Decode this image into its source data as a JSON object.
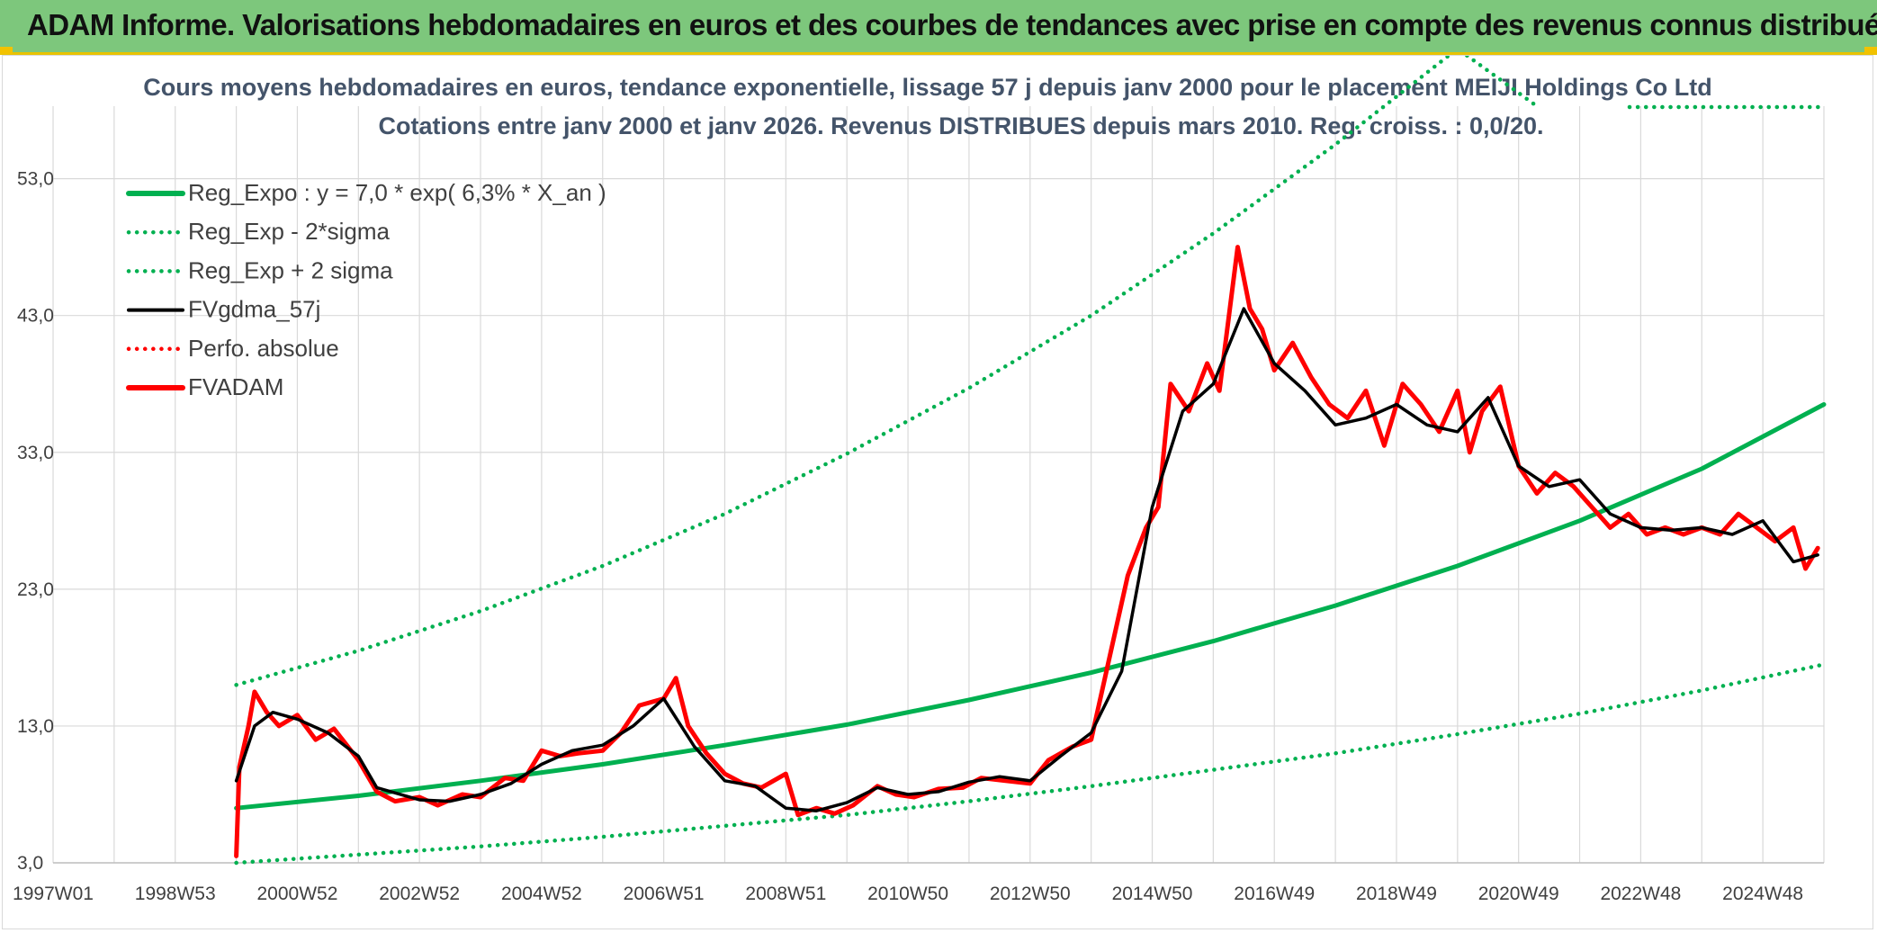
{
  "header": {
    "title": "ADAM Informe. Valorisations hebdomadaires en euros et des courbes de tendances avec prise en compte des revenus connus distribués"
  },
  "colors": {
    "header_bg": "#7dc77c",
    "reg_expo": "#00b050",
    "sigma": "#00b050",
    "gdma": "#000000",
    "perfo": "#ff0000",
    "fvadam": "#ff0000",
    "grid": "#d9d9d9"
  },
  "chart_data": {
    "type": "line",
    "title_line1": "Cours moyens hebdomadaires en euros, tendance exponentielle, lissage 57 j depuis janv 2000 pour le placement MEIJI Holdings Co Ltd",
    "title_line2": "Cotations entre janv 2000 et janv 2026. Revenus DISTRIBUES depuis mars 2010. Reg. croiss. : 0,0/20.",
    "y_ticks": [
      "53,0",
      "43,0",
      "33,0",
      "23,0",
      "13,0",
      "3,0"
    ],
    "ylim": [
      3,
      58.3
    ],
    "x_ticks": [
      "1997W01",
      "1998W53",
      "2000W52",
      "2002W52",
      "2004W52",
      "2006W51",
      "2008W51",
      "2010W50",
      "2012W50",
      "2014W50",
      "2016W49",
      "2018W49",
      "2020W49",
      "2022W48",
      "2024W48"
    ],
    "xlim": [
      1997.0,
      2026.0
    ],
    "legend": [
      {
        "name": "Reg_Expo : y = 7,0 * exp( 6,3% *  X_an )",
        "style": "solid",
        "color": "#00b050"
      },
      {
        "name": "Reg_Exp - 2*sigma",
        "style": "dotted",
        "color": "#00b050"
      },
      {
        "name": "Reg_Exp + 2 sigma",
        "style": "dotted",
        "color": "#00b050"
      },
      {
        "name": "FVgdma_57j",
        "style": "solid",
        "color": "#000000"
      },
      {
        "name": "Perfo. absolue",
        "style": "dotted",
        "color": "#ff0000"
      },
      {
        "name": "FVADAM",
        "style": "solid",
        "color": "#ff0000"
      }
    ],
    "series": [
      {
        "name": "Reg_Expo : y = 7,0 * exp( 6,3% *  X_an )",
        "x": [
          2000.0,
          2002.0,
          2004.0,
          2006.0,
          2008.0,
          2010.0,
          2012.0,
          2014.0,
          2016.0,
          2018.0,
          2020.0,
          2022.0,
          2024.0,
          2026.0
        ],
        "y": [
          7.0,
          7.9,
          9.0,
          10.2,
          11.6,
          13.1,
          14.9,
          16.9,
          19.2,
          21.8,
          24.7,
          28.0,
          31.8,
          36.5
        ]
      },
      {
        "name": "Reg_Exp - 2*sigma",
        "x": [
          2000.0,
          2002.0,
          2004.0,
          2006.0,
          2008.0,
          2010.0,
          2012.0,
          2014.0,
          2016.0,
          2018.0,
          2020.0,
          2022.0,
          2024.0,
          2026.0
        ],
        "y": [
          3.0,
          3.6,
          4.2,
          4.9,
          5.7,
          6.5,
          7.5,
          8.6,
          9.8,
          11.0,
          12.4,
          13.9,
          15.6,
          17.5
        ]
      },
      {
        "name": "Reg_Exp + 2 sigma",
        "x": [
          2000.0,
          2002.0,
          2004.0,
          2006.0,
          2008.0,
          2010.0,
          2012.0,
          2014.0,
          2016.0,
          2018.0,
          2020.0,
          2021.3
        ],
        "y": [
          16.0,
          18.5,
          21.4,
          24.7,
          28.5,
          32.9,
          37.7,
          43.0,
          49.0,
          55.5,
          62.5,
          58.3
        ]
      },
      {
        "name": "FVgdma_57j",
        "x": [
          2000.0,
          2000.3,
          2000.6,
          2001.0,
          2001.5,
          2002.0,
          2002.3,
          2003.0,
          2003.5,
          2004.0,
          2004.5,
          2005.0,
          2005.5,
          2006.0,
          2006.5,
          2007.0,
          2007.5,
          2008.0,
          2008.5,
          2009.0,
          2009.5,
          2010.0,
          2010.5,
          2011.0,
          2011.5,
          2012.0,
          2012.5,
          2013.0,
          2013.5,
          2014.0,
          2014.5,
          2015.0,
          2015.5,
          2016.0,
          2016.5,
          2017.0,
          2017.5,
          2018.0,
          2018.5,
          2019.0,
          2019.5,
          2020.0,
          2020.5,
          2021.0,
          2021.5,
          2022.0,
          2022.5,
          2023.0,
          2023.5,
          2024.0,
          2024.5,
          2025.0,
          2025.5,
          2025.9
        ],
        "y": [
          9.0,
          13.0,
          14.0,
          13.5,
          12.5,
          10.8,
          8.5,
          7.6,
          7.5,
          8.0,
          8.8,
          10.2,
          11.2,
          11.6,
          13.0,
          15.0,
          11.5,
          9.0,
          8.6,
          7.0,
          6.8,
          7.4,
          8.5,
          8.0,
          8.2,
          8.9,
          9.3,
          9.0,
          10.8,
          12.5,
          17.0,
          29.0,
          36.0,
          38.0,
          43.5,
          39.5,
          37.5,
          35.0,
          35.5,
          36.5,
          35.0,
          34.5,
          37.0,
          32.0,
          30.5,
          31.0,
          28.5,
          27.5,
          27.3,
          27.5,
          27.0,
          28.0,
          25.0,
          25.5
        ]
      },
      {
        "name": "FVADAM",
        "x": [
          2000.0,
          2000.05,
          2000.2,
          2000.3,
          2000.5,
          2000.7,
          2001.0,
          2001.3,
          2001.6,
          2002.0,
          2002.3,
          2002.6,
          2003.0,
          2003.3,
          2003.7,
          2004.0,
          2004.4,
          2004.7,
          2005.0,
          2005.3,
          2005.6,
          2006.0,
          2006.3,
          2006.6,
          2007.0,
          2007.2,
          2007.4,
          2007.7,
          2008.0,
          2008.3,
          2008.6,
          2009.0,
          2009.2,
          2009.5,
          2009.8,
          2010.1,
          2010.5,
          2010.8,
          2011.1,
          2011.5,
          2011.9,
          2012.2,
          2012.6,
          2013.0,
          2013.3,
          2013.7,
          2014.0,
          2014.3,
          2014.6,
          2014.9,
          2015.1,
          2015.3,
          2015.6,
          2015.9,
          2016.1,
          2016.4,
          2016.6,
          2016.8,
          2017.0,
          2017.3,
          2017.6,
          2017.9,
          2018.2,
          2018.5,
          2018.8,
          2019.1,
          2019.4,
          2019.7,
          2020.0,
          2020.2,
          2020.4,
          2020.7,
          2021.0,
          2021.3,
          2021.6,
          2021.9,
          2022.2,
          2022.5,
          2022.8,
          2023.1,
          2023.4,
          2023.7,
          2024.0,
          2024.3,
          2024.6,
          2024.9,
          2025.2,
          2025.5,
          2025.7,
          2025.9
        ],
        "y": [
          3.5,
          10.0,
          13.0,
          15.5,
          14.0,
          13.0,
          13.8,
          12.0,
          12.8,
          10.5,
          8.2,
          7.5,
          7.8,
          7.2,
          8.0,
          7.8,
          9.2,
          9.0,
          11.2,
          10.8,
          11.0,
          11.2,
          12.5,
          14.5,
          15.0,
          16.5,
          13.0,
          11.0,
          9.5,
          8.8,
          8.5,
          9.5,
          6.5,
          7.0,
          6.6,
          7.2,
          8.6,
          8.0,
          7.8,
          8.4,
          8.5,
          9.2,
          9.0,
          8.8,
          10.5,
          11.5,
          12.0,
          18.0,
          24.0,
          27.5,
          29.0,
          38.0,
          36.0,
          39.5,
          37.5,
          48.0,
          43.5,
          42.0,
          39.0,
          41.0,
          38.5,
          36.5,
          35.5,
          37.5,
          33.5,
          38.0,
          36.5,
          34.5,
          37.5,
          33.0,
          36.0,
          37.8,
          32.0,
          30.0,
          31.5,
          30.5,
          29.0,
          27.5,
          28.5,
          27.0,
          27.5,
          27.0,
          27.5,
          27.0,
          28.5,
          27.5,
          26.5,
          27.5,
          24.5,
          26.0
        ]
      }
    ]
  }
}
